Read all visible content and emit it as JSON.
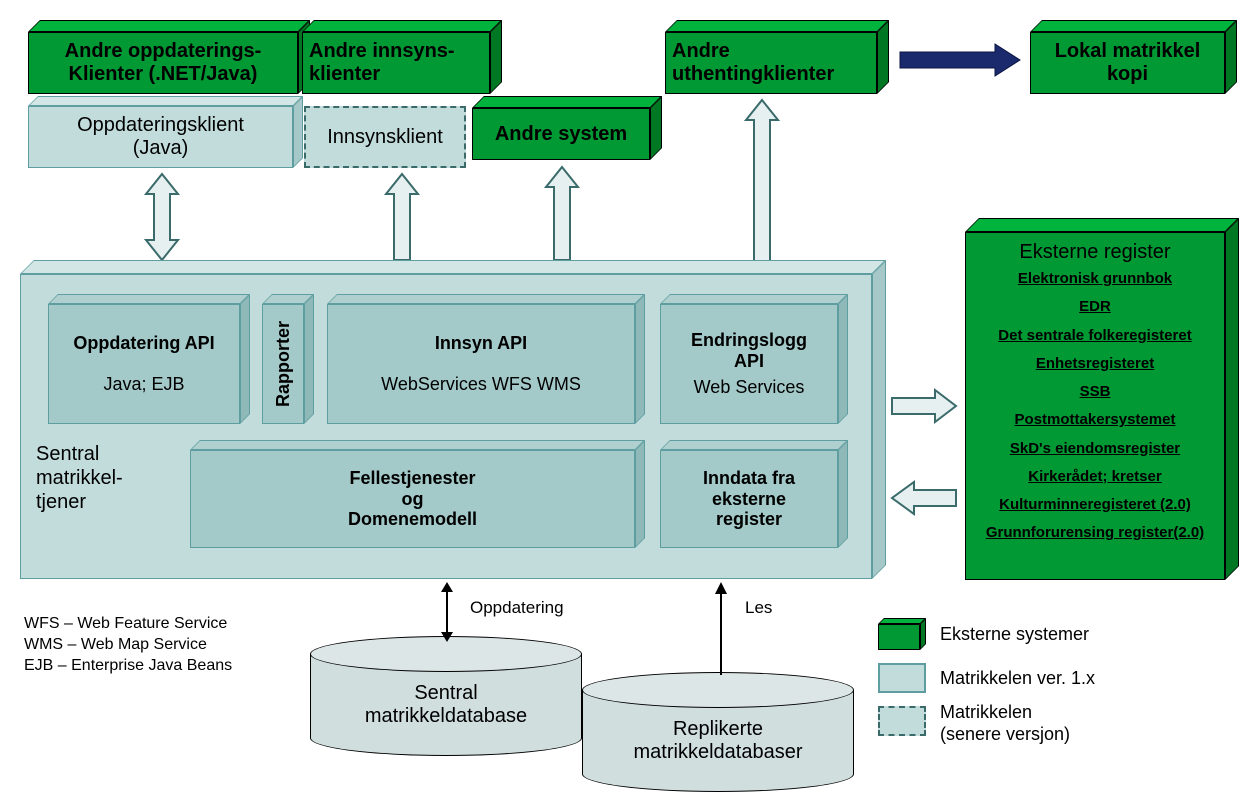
{
  "colors": {
    "green_front": "#009933",
    "green_top": "#00b33c",
    "green_side": "#007722",
    "lightblue_front": "#c2dcdc",
    "lightblue_top": "#d3e6e6",
    "lightblue_side": "#9fc4c4",
    "lightblue_border": "#5f9ea0",
    "arrow_light": "#e6f0f0",
    "arrow_dark": "#1a2a6c",
    "black": "#000000",
    "cyl_fill": "#d0dede"
  },
  "top_row": {
    "andre_oppdaterings": {
      "line1": "Andre oppdaterings-",
      "line2": "Klienter (.NET/Java)"
    },
    "andre_innsyns": {
      "line1": "Andre innsyns-",
      "line2": "klienter"
    },
    "andre_uthenting": {
      "line1": "Andre",
      "line2": "uthentingklienter"
    },
    "lokal_matrikkel": {
      "line1": "Lokal matrikkel",
      "line2": "kopi"
    }
  },
  "second_row": {
    "oppdateringsklient": {
      "line1": "Oppdateringsklient",
      "line2": "(Java)"
    },
    "innsynsklient": "Innsynsklient",
    "andre_system": "Andre system"
  },
  "server": {
    "title_line1": "Sentral",
    "title_line2": "matrikkel-",
    "title_line3": "tjener",
    "oppdatering_api": {
      "title": "Oppdatering API",
      "sub": "Java; EJB"
    },
    "rapporter": "Rapporter",
    "innsyn_api": {
      "title": "Innsyn API",
      "sub": "WebServices   WFS   WMS"
    },
    "endringslogg": {
      "line1": "Endringslogg",
      "line2": "API",
      "sub": "Web Services"
    },
    "fellestjenester": {
      "line1": "Fellestjenester",
      "line2": "og",
      "line3": "Domenemodell"
    },
    "inndata": {
      "line1": "Inndata fra",
      "line2": "eksterne",
      "line3": "register"
    }
  },
  "eksterne": {
    "title": "Eksterne register",
    "items": [
      "Elektronisk grunnbok",
      "EDR",
      "Det sentrale folkeregisteret",
      "Enhetsregisteret",
      "SSB",
      "Postmottakersystemet",
      "SkD's eiendomsregister",
      "Kirkerådet; kretser",
      "Kulturminneregisteret (2.0)",
      "Grunnforurensing register(2.0)"
    ]
  },
  "db": {
    "sentral": {
      "line1": "Sentral",
      "line2": "matrikkeldatabase"
    },
    "replikerte": {
      "line1": "Replikerte",
      "line2": "matrikkeldatabaser"
    },
    "oppdatering_label": "Oppdatering",
    "les_label": "Les"
  },
  "glossary": {
    "wfs": "WFS – Web Feature Service",
    "wms": "WMS – Web Map Service",
    "ejb": "EJB – Enterprise Java Beans"
  },
  "legend": {
    "eksterne": "Eksterne systemer",
    "matrikkel1x": "Matrikkelen ver. 1.x",
    "matrikkel_senere_l1": "Matrikkelen",
    "matrikkel_senere_l2": "(senere versjon)"
  },
  "fonts": {
    "title": 20,
    "body": 18,
    "small": 15,
    "ext_list": 15
  }
}
